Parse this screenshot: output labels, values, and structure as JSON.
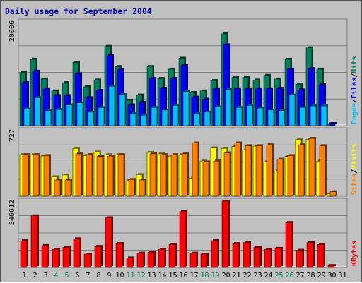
{
  "title": "Daily usage for September 2004",
  "colors": {
    "hits": "#00805c",
    "files": "#0000ff",
    "pages": "#00c0ff",
    "visits": "#ffff00",
    "sites": "#ff8000",
    "kbytes": "#ff0000",
    "weekend_day": "#00805c",
    "weekday_day": "#000000"
  },
  "chart_data": [
    {
      "type": "bar",
      "categories": [
        "1",
        "2",
        "3",
        "4",
        "5",
        "6",
        "7",
        "8",
        "9",
        "10",
        "11",
        "12",
        "13",
        "14",
        "15",
        "16",
        "17",
        "18",
        "19",
        "20",
        "21",
        "22",
        "23",
        "24",
        "25",
        "26",
        "27",
        "28",
        "29",
        "30",
        "31"
      ],
      "weekend_days": [
        "4",
        "5",
        "11",
        "12",
        "18",
        "19",
        "25",
        "26"
      ],
      "ymax_label": "20006",
      "axis_label_parts": [
        "Pages",
        "/",
        "Files",
        "/",
        "Hits"
      ],
      "ylim": [
        0,
        20006
      ],
      "series": [
        {
          "name": "Hits",
          "values": [
            10200,
            12800,
            9000,
            6700,
            8300,
            12200,
            7500,
            8800,
            15300,
            11400,
            4900,
            5900,
            11400,
            9100,
            10900,
            13000,
            6400,
            6700,
            8700,
            17700,
            9300,
            9300,
            8800,
            9700,
            9000,
            12800,
            8000,
            15000,
            10900,
            400,
            0
          ]
        },
        {
          "name": "Files",
          "values": [
            8300,
            10500,
            7100,
            5800,
            5800,
            10000,
            5400,
            6800,
            13500,
            10800,
            4000,
            4500,
            9100,
            7200,
            9100,
            11600,
            5500,
            5100,
            7100,
            15600,
            7100,
            7100,
            7100,
            7100,
            7200,
            10900,
            6900,
            11000,
            7900,
            400,
            0
          ]
        },
        {
          "name": "Pages",
          "values": [
            3200,
            5400,
            2900,
            3100,
            4000,
            4400,
            2600,
            3500,
            7600,
            6000,
            2300,
            2000,
            3500,
            3000,
            3900,
            6600,
            2300,
            2600,
            3600,
            7000,
            3500,
            3900,
            3400,
            3000,
            2900,
            5900,
            3500,
            3800,
            3800,
            0,
            0
          ]
        }
      ]
    },
    {
      "type": "bar",
      "categories": [
        "1",
        "2",
        "3",
        "4",
        "5",
        "6",
        "7",
        "8",
        "9",
        "10",
        "11",
        "12",
        "13",
        "14",
        "15",
        "16",
        "17",
        "18",
        "19",
        "20",
        "21",
        "22",
        "23",
        "24",
        "25",
        "26",
        "27",
        "28",
        "29",
        "30",
        "31"
      ],
      "ymax_label": "727",
      "axis_label_parts": [
        "Sites",
        "/",
        "Visits"
      ],
      "ylim": [
        0,
        727
      ],
      "series": [
        {
          "name": "Visits",
          "values": [
            460,
            460,
            445,
            215,
            235,
            530,
            450,
            490,
            460,
            460,
            170,
            240,
            485,
            470,
            445,
            460,
            200,
            390,
            535,
            530,
            550,
            510,
            555,
            380,
            280,
            440,
            630,
            630,
            390,
            25,
            0
          ]
        },
        {
          "name": "Sites",
          "values": [
            460,
            460,
            450,
            180,
            180,
            470,
            460,
            440,
            445,
            460,
            185,
            180,
            470,
            460,
            460,
            470,
            590,
            380,
            390,
            480,
            590,
            560,
            560,
            570,
            410,
            450,
            570,
            640,
            560,
            50,
            0
          ]
        }
      ]
    },
    {
      "type": "bar",
      "categories": [
        "1",
        "2",
        "3",
        "4",
        "5",
        "6",
        "7",
        "8",
        "9",
        "10",
        "11",
        "12",
        "13",
        "14",
        "15",
        "16",
        "17",
        "18",
        "19",
        "20",
        "21",
        "22",
        "23",
        "24",
        "25",
        "26",
        "27",
        "28",
        "29",
        "30",
        "31"
      ],
      "ymax_label": "346612",
      "axis_label_parts": [
        "KBytes"
      ],
      "ylim": [
        0,
        346612
      ],
      "series": [
        {
          "name": "KBytes",
          "values": [
            140000,
            270000,
            115000,
            95000,
            105000,
            150000,
            70000,
            110000,
            260000,
            125000,
            50000,
            75000,
            80000,
            95000,
            120000,
            292000,
            75000,
            70000,
            140000,
            346612,
            125000,
            130000,
            105000,
            95000,
            100000,
            235000,
            90000,
            130000,
            120000,
            10000,
            0
          ]
        }
      ]
    }
  ]
}
